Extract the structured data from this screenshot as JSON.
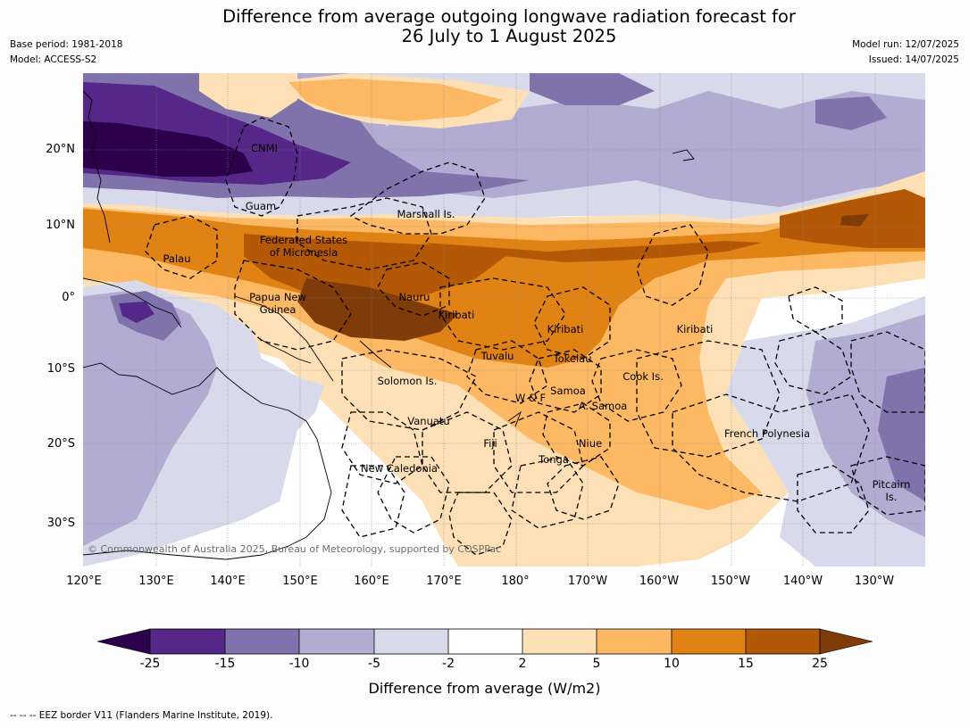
{
  "title": "Difference from average outgoing longwave radiation forecast for\n26 July to 1 August 2025",
  "meta_left": [
    "Base period: 1981-2018",
    "Model: ACCESS-S2"
  ],
  "meta_right": [
    "Model run: 12/07/2025",
    "Issued: 14/07/2025"
  ],
  "lat_ticks": [
    "20°N",
    "10°N",
    "0°",
    "10°S",
    "20°S",
    "30°S"
  ],
  "lon_ticks": [
    "120°E",
    "130°E",
    "140°E",
    "150°E",
    "160°E",
    "170°E",
    "180°",
    "170°W",
    "160°W",
    "150°W",
    "140°W",
    "130°W"
  ],
  "places": [
    "CNMI",
    "Guam",
    "Marshall Is.",
    "Federated States\nof Micronesia",
    "Palau",
    "Papua New\nGuinea",
    "Nauru",
    "Kiribati",
    "Kiribati",
    "Kiribati",
    "Tuvalu",
    "Tokelau",
    "Solomon Is.",
    "Cook Is.",
    "Samoa",
    "W & F",
    "A. Samoa",
    "Vanuatu",
    "Fiji",
    "Niue",
    "French Polynesia",
    "Tonga",
    "New Caledonia",
    "Pitcairn\nIs."
  ],
  "copyright": "© Commonwealth of Australia 2025, Bureau of Meteorology, supported by COSPPac",
  "colorbar": {
    "ticks": [
      "-25",
      "-15",
      "-10",
      "-5",
      "-2",
      "2",
      "5",
      "10",
      "15",
      "25"
    ],
    "colors": [
      "#2d004b",
      "#542788",
      "#8073ac",
      "#b2abd2",
      "#d8daeb",
      "#ffffff",
      "#fee0b6",
      "#fdb863",
      "#e08214",
      "#b35806",
      "#7f3b08"
    ],
    "label": "Difference from average (W/m2)"
  },
  "footnote": "--  --  -- EEZ border V11 (Flanders Marine Institute, 2019)."
}
